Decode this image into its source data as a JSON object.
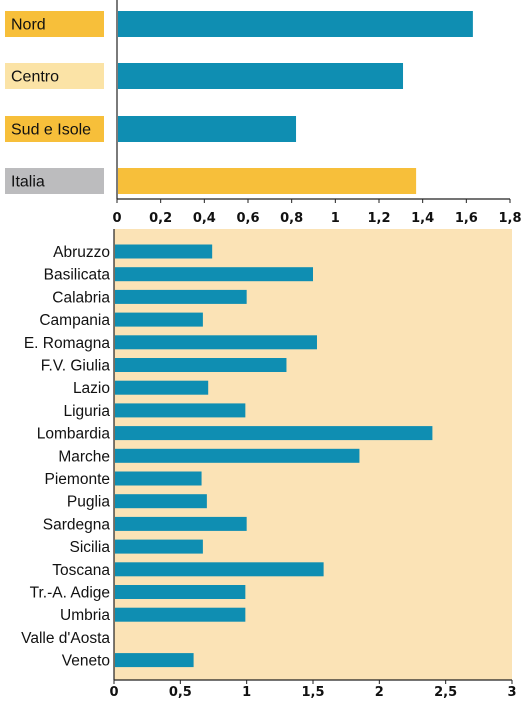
{
  "chart_data": [
    {
      "type": "bar",
      "orientation": "horizontal",
      "categories": [
        "Nord",
        "Centro",
        "Sud e Isole",
        "Italia"
      ],
      "values": [
        1.63,
        1.31,
        0.82,
        1.37
      ],
      "xlim": [
        0,
        1.8
      ],
      "xticks": [
        "0",
        "0,2",
        "0,4",
        "0,6",
        "0,8",
        "1",
        "1,2",
        "1,4",
        "1,6",
        "1,8"
      ],
      "label_colors": [
        "#f7bf3a",
        "#fbe3a6",
        "#f7bf3a",
        "#bcbcbe"
      ],
      "bar_colors": [
        "#0f8eb2",
        "#0f8eb2",
        "#0f8eb2",
        "#f7bf3a"
      ]
    },
    {
      "type": "bar",
      "orientation": "horizontal",
      "categories": [
        "Abruzzo",
        "Basilicata",
        "Calabria",
        "Campania",
        "E. Romagna",
        "F.V. Giulia",
        "Lazio",
        "Liguria",
        "Lombardia",
        "Marche",
        "Piemonte",
        "Puglia",
        "Sardegna",
        "Sicilia",
        "Toscana",
        "Tr.-A. Adige",
        "Umbria",
        "Valle d'Aosta",
        "Veneto"
      ],
      "values": [
        0.74,
        1.5,
        1.0,
        0.67,
        1.53,
        1.3,
        0.71,
        0.99,
        2.4,
        1.85,
        0.66,
        0.7,
        1.0,
        0.67,
        1.58,
        0.99,
        0.99,
        0,
        0.6
      ],
      "xlim": [
        0,
        3
      ],
      "xticks": [
        "0",
        "0,5",
        "1",
        "1,5",
        "2",
        "2,5",
        "3"
      ],
      "bar_color": "#0f8eb2",
      "background": "#fbe3b6"
    }
  ]
}
